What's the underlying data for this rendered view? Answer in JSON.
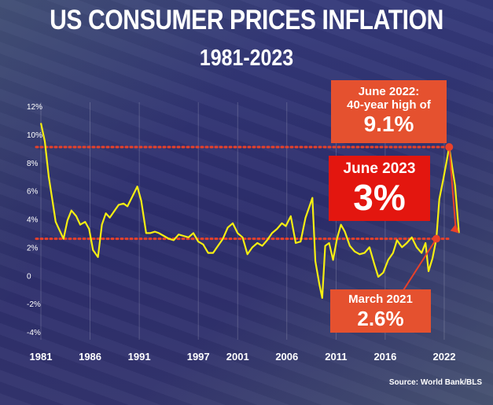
{
  "title": "US CONSUMER PRICES INFLATION",
  "subtitle": "1981-2023",
  "source": "Source: World Bank/BLS",
  "annotations": {
    "peak": {
      "line1": "June 2022:",
      "line2": "40-year high of",
      "value": "9.1%"
    },
    "june2023": {
      "label": "June 2023",
      "value": "3%"
    },
    "march2021": {
      "label": "March 2021",
      "value": "2.6%"
    }
  },
  "colors": {
    "line": "#f5ee12",
    "reference_line": "#e8412a",
    "box_orange": "#e5512f",
    "box_red": "#e3160f",
    "text": "#ffffff"
  },
  "chart_data": {
    "type": "line",
    "title": "US CONSUMER PRICES INFLATION",
    "subtitle": "1981-2023",
    "ylim": [
      -4,
      12
    ],
    "y_ticks": [
      "12%",
      "10%",
      "8%",
      "6%",
      "4%",
      "2%",
      "0",
      "-2%",
      "-4%"
    ],
    "x_ticks": [
      "1981",
      "1986",
      "1991",
      "1997",
      "2001",
      "2006",
      "2011",
      "2016",
      "2022"
    ],
    "reference_lines": [
      9.1,
      2.6
    ],
    "grid": "vertical",
    "series": [
      {
        "x": [
          1981.0,
          1981.4,
          1981.8,
          1982.2,
          1982.5,
          1982.9,
          1983.3,
          1983.7,
          1984.1,
          1984.6,
          1985.0,
          1985.5,
          1985.9,
          1986.3,
          1986.8,
          1987.2,
          1987.6,
          1988.0,
          1988.5,
          1988.9,
          1989.4,
          1989.8,
          1990.3,
          1990.8,
          1991.2,
          1991.7,
          1992.1,
          1992.6,
          1993.0,
          1993.5,
          1994.0,
          1994.5,
          1995.0,
          1995.5,
          1996.0,
          1996.5,
          1997.0,
          1997.5,
          1998.0,
          1998.5,
          1999.0,
          1999.5,
          2000.0,
          2000.5,
          2001.0,
          2001.5,
          2002.0,
          2002.5,
          2003.0,
          2003.5,
          2004.0,
          2004.5,
          2005.0,
          2005.5,
          2005.9,
          2006.4,
          2006.9,
          2007.4,
          2007.9,
          2008.3,
          2008.6,
          2008.9,
          2009.3,
          2009.6,
          2009.9,
          2010.3,
          2010.7,
          2011.1,
          2011.5,
          2011.9,
          2012.4,
          2012.9,
          2013.4,
          2013.9,
          2014.4,
          2014.9,
          2015.3,
          2015.8,
          2016.3,
          2016.8,
          2017.2,
          2017.7,
          2018.2,
          2018.7,
          2019.2,
          2019.7,
          2020.1,
          2020.4,
          2020.8,
          2021.2,
          2021.5,
          2021.9,
          2022.3,
          2022.5,
          2022.8,
          2023.1,
          2023.5
        ],
        "y": [
          10.8,
          9.5,
          7.0,
          5.2,
          3.8,
          3.2,
          2.6,
          3.9,
          4.6,
          4.2,
          3.6,
          3.8,
          3.3,
          1.8,
          1.3,
          3.6,
          4.4,
          4.1,
          4.6,
          5.0,
          5.1,
          4.9,
          5.6,
          6.3,
          5.3,
          3.0,
          3.0,
          3.1,
          3.0,
          2.8,
          2.6,
          2.5,
          2.9,
          2.8,
          2.7,
          3.0,
          2.4,
          2.2,
          1.6,
          1.6,
          2.1,
          2.6,
          3.4,
          3.7,
          3.0,
          2.7,
          1.5,
          2.0,
          2.3,
          2.1,
          2.5,
          3.0,
          3.3,
          3.7,
          3.5,
          4.2,
          2.3,
          2.4,
          4.1,
          4.9,
          5.5,
          1.0,
          -0.6,
          -1.6,
          2.1,
          2.3,
          1.1,
          2.6,
          3.6,
          3.1,
          2.1,
          1.7,
          1.5,
          1.6,
          2.0,
          0.8,
          -0.1,
          0.2,
          1.1,
          1.6,
          2.5,
          2.0,
          2.3,
          2.7,
          2.0,
          1.6,
          2.3,
          0.3,
          1.2,
          2.6,
          5.4,
          6.8,
          8.3,
          9.1,
          7.7,
          6.4,
          3.0
        ]
      }
    ]
  }
}
